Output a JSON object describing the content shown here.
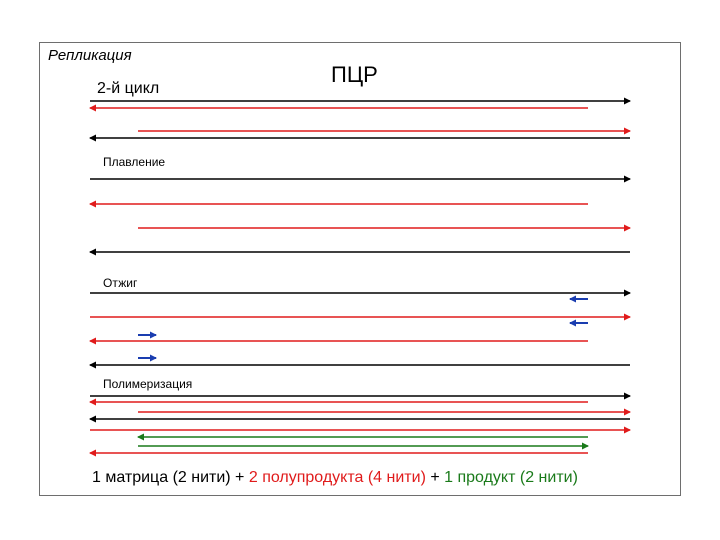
{
  "header": {
    "replication_label": "Репликация",
    "cycle_label": "2-й цикл",
    "pcr_label": "ПЦР"
  },
  "stages": [
    "Плавление",
    "Отжиг",
    "Полимеризация"
  ],
  "summary": {
    "part1": "1 матрица (2 нити)",
    "plus1": " + ",
    "part2": "2 полупродукта (4 нити)",
    "plus2": " + ",
    "part3": "1 продукт (2 нити)"
  },
  "colors": {
    "template": "#000000",
    "half_product": "#e01b1b",
    "product": "#1a7a1a",
    "primer": "#1a3db0",
    "frame": "#6e6e6e"
  }
}
